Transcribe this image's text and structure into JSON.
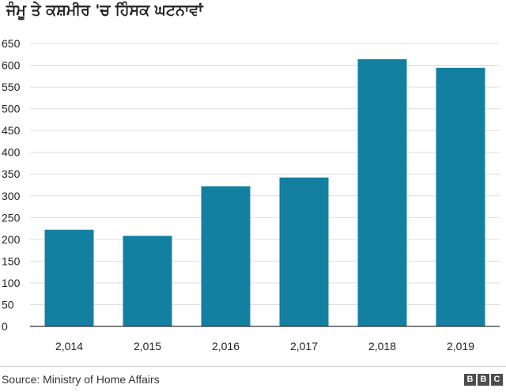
{
  "chart_data": {
    "type": "bar",
    "title": "ਜੰਮੂ ਤੇ ਕਸ਼ਮੀਰ 'ਚ ਹਿੰਸਕ ਘਟਨਾਵਾਂ",
    "categories": [
      "2,014",
      "2,015",
      "2,016",
      "2,017",
      "2,018",
      "2,019"
    ],
    "values": [
      222,
      208,
      322,
      342,
      614,
      594
    ],
    "yticks": [
      0,
      50,
      100,
      150,
      200,
      250,
      300,
      350,
      400,
      450,
      500,
      550,
      600,
      650
    ],
    "ylim": [
      0,
      650
    ],
    "xlabel": "",
    "ylabel": "",
    "grid": true,
    "bar_color": "#1380a1",
    "grid_color": "#dddddd"
  },
  "footer": {
    "source": "Source: Ministry of Home Affairs",
    "logo": [
      "B",
      "B",
      "C"
    ]
  }
}
